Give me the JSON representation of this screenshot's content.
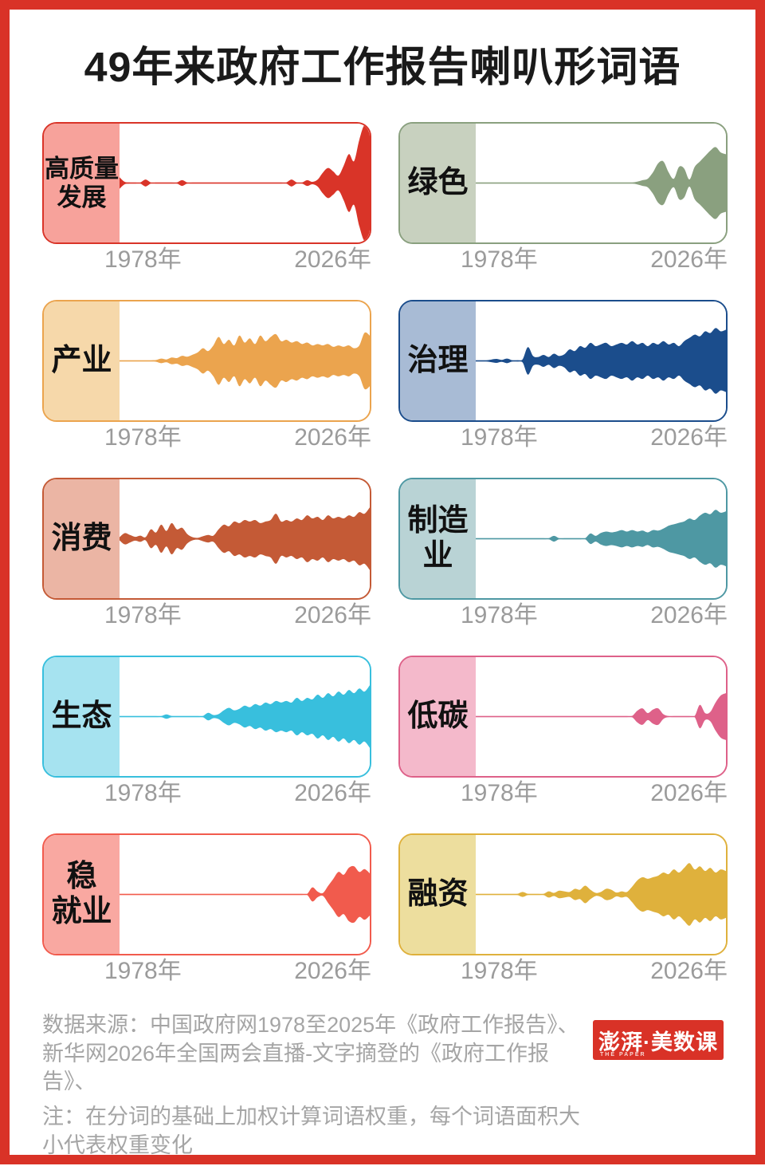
{
  "title": "49年来政府工作报告喇叭形词语",
  "frame_color": "#D93227",
  "text_colors": {
    "title": "#1a1a1a",
    "axis_label": "#9B9B9B",
    "footer": "#A5A5A5"
  },
  "axis": {
    "start": "1978年",
    "end": "2026年"
  },
  "footer": {
    "source_line": "数据来源：中国政府网1978至2025年《政府工作报告》、 新华网2026年全国两会直播-文字摘登的《政府工作报告》、",
    "note_line": "注：在分词的基础上加权计算词语权重，每个词语面积大小代表权重变化"
  },
  "logo": {
    "brand": "澎湃·美数课",
    "sub": "THE PAPER",
    "bg": "#D93227"
  },
  "chart_data": {
    "type": "area",
    "subtype": "horn-stream-small-multiples",
    "x_start": 1978,
    "x_end": 2026,
    "x_axis_labels": [
      "1978年",
      "2026年"
    ],
    "note": "values are relative word weights per year (0-1 of each series max); area is symmetric around midline",
    "series": [
      {
        "word": "高质量\n发展",
        "color": "#D93428",
        "sidebar_color": "#F7A29B",
        "max_half": 74,
        "values": [
          0.1,
          0.02,
          0.01,
          0.01,
          0.01,
          0.06,
          0.01,
          0.01,
          0.01,
          0.01,
          0.01,
          0.01,
          0.05,
          0.01,
          0.01,
          0.01,
          0.01,
          0.01,
          0.01,
          0.01,
          0.01,
          0.01,
          0.01,
          0.01,
          0.01,
          0.01,
          0.01,
          0.01,
          0.01,
          0.01,
          0.01,
          0.01,
          0.01,
          0.06,
          0.01,
          0.01,
          0.05,
          0.02,
          0.06,
          0.18,
          0.26,
          0.2,
          0.13,
          0.3,
          0.5,
          0.38,
          0.75,
          1.0,
          0.85
        ]
      },
      {
        "word": "绿色",
        "color": "#8AA07F",
        "sidebar_color": "#C8D1BF",
        "max_half": 46,
        "values": [
          0.01,
          0.01,
          0.01,
          0.01,
          0.01,
          0.01,
          0.01,
          0.01,
          0.01,
          0.01,
          0.01,
          0.01,
          0.01,
          0.01,
          0.01,
          0.01,
          0.01,
          0.01,
          0.01,
          0.01,
          0.01,
          0.01,
          0.01,
          0.01,
          0.01,
          0.01,
          0.01,
          0.01,
          0.01,
          0.01,
          0.01,
          0.04,
          0.08,
          0.12,
          0.3,
          0.55,
          0.6,
          0.3,
          0.12,
          0.45,
          0.4,
          0.1,
          0.45,
          0.6,
          0.75,
          0.9,
          1.0,
          0.85,
          0.8
        ]
      },
      {
        "word": "产业",
        "color": "#EBA44E",
        "sidebar_color": "#F6D8AA",
        "max_half": 36,
        "values": [
          0.01,
          0.01,
          0.01,
          0.01,
          0.01,
          0.01,
          0.01,
          0.03,
          0.08,
          0.05,
          0.12,
          0.1,
          0.18,
          0.15,
          0.22,
          0.3,
          0.45,
          0.35,
          0.55,
          0.85,
          0.6,
          0.75,
          0.55,
          0.9,
          0.65,
          0.8,
          0.6,
          0.9,
          0.7,
          0.85,
          0.95,
          0.7,
          0.75,
          0.65,
          0.7,
          0.6,
          0.65,
          0.55,
          0.6,
          0.55,
          0.6,
          0.5,
          0.55,
          0.5,
          0.55,
          0.45,
          0.55,
          1.0,
          0.9
        ]
      },
      {
        "word": "治理",
        "color": "#1B4D8C",
        "sidebar_color": "#A8BBD5",
        "max_half": 42,
        "values": [
          0.01,
          0.01,
          0.01,
          0.04,
          0.06,
          0.03,
          0.07,
          0.02,
          0.02,
          0.05,
          0.42,
          0.15,
          0.12,
          0.18,
          0.12,
          0.22,
          0.15,
          0.2,
          0.35,
          0.3,
          0.45,
          0.4,
          0.55,
          0.45,
          0.5,
          0.55,
          0.45,
          0.5,
          0.55,
          0.5,
          0.6,
          0.5,
          0.55,
          0.45,
          0.55,
          0.5,
          0.6,
          0.5,
          0.55,
          0.45,
          0.6,
          0.7,
          0.8,
          0.75,
          0.9,
          0.85,
          1.0,
          0.9,
          0.95
        ]
      },
      {
        "word": "消费",
        "color": "#C45A36",
        "sidebar_color": "#EBB5A4",
        "max_half": 40,
        "values": [
          0.05,
          0.18,
          0.12,
          0.06,
          0.1,
          0.05,
          0.3,
          0.2,
          0.45,
          0.25,
          0.5,
          0.3,
          0.35,
          0.15,
          0.05,
          0.03,
          0.08,
          0.12,
          0.1,
          0.3,
          0.45,
          0.4,
          0.55,
          0.5,
          0.6,
          0.55,
          0.6,
          0.5,
          0.55,
          0.6,
          0.8,
          0.55,
          0.6,
          0.55,
          0.65,
          0.6,
          0.75,
          0.65,
          0.7,
          0.6,
          0.75,
          0.65,
          0.7,
          0.65,
          0.75,
          0.7,
          0.85,
          0.8,
          1.0
        ]
      },
      {
        "word": "制造\n业",
        "color": "#4E98A3",
        "sidebar_color": "#B9D3D5",
        "max_half": 37,
        "values": [
          0.01,
          0.01,
          0.01,
          0.01,
          0.01,
          0.01,
          0.01,
          0.01,
          0.01,
          0.01,
          0.01,
          0.01,
          0.01,
          0.01,
          0.02,
          0.1,
          0.02,
          0.01,
          0.01,
          0.01,
          0.01,
          0.02,
          0.18,
          0.1,
          0.2,
          0.25,
          0.22,
          0.25,
          0.3,
          0.25,
          0.3,
          0.25,
          0.28,
          0.22,
          0.3,
          0.28,
          0.35,
          0.45,
          0.5,
          0.55,
          0.6,
          0.7,
          0.65,
          0.8,
          0.9,
          0.85,
          1.0,
          0.9,
          0.95
        ]
      },
      {
        "word": "生态",
        "color": "#38BFDD",
        "sidebar_color": "#A6E3F0",
        "max_half": 40,
        "values": [
          0.01,
          0.01,
          0.01,
          0.01,
          0.01,
          0.01,
          0.01,
          0.01,
          0.01,
          0.07,
          0.02,
          0.01,
          0.01,
          0.01,
          0.01,
          0.01,
          0.02,
          0.12,
          0.05,
          0.08,
          0.2,
          0.28,
          0.2,
          0.25,
          0.35,
          0.3,
          0.4,
          0.35,
          0.45,
          0.4,
          0.5,
          0.45,
          0.5,
          0.45,
          0.6,
          0.5,
          0.6,
          0.55,
          0.7,
          0.6,
          0.75,
          0.65,
          0.8,
          0.7,
          0.85,
          0.75,
          0.9,
          0.8,
          1.0
        ]
      },
      {
        "word": "低碳",
        "color": "#DE6189",
        "sidebar_color": "#F4B9CB",
        "max_half": 30,
        "values": [
          0.01,
          0.01,
          0.01,
          0.01,
          0.01,
          0.01,
          0.01,
          0.01,
          0.01,
          0.01,
          0.01,
          0.01,
          0.01,
          0.01,
          0.01,
          0.01,
          0.01,
          0.01,
          0.01,
          0.01,
          0.01,
          0.01,
          0.01,
          0.01,
          0.01,
          0.01,
          0.01,
          0.01,
          0.01,
          0.01,
          0.03,
          0.25,
          0.35,
          0.15,
          0.3,
          0.35,
          0.1,
          0.02,
          0.02,
          0.02,
          0.02,
          0.02,
          0.03,
          0.5,
          0.15,
          0.2,
          0.6,
          0.9,
          1.0
        ]
      },
      {
        "word": "稳\n就业",
        "color": "#F15B4D",
        "sidebar_color": "#F9A8A1",
        "max_half": 36,
        "values": [
          0.01,
          0.01,
          0.01,
          0.01,
          0.01,
          0.01,
          0.01,
          0.01,
          0.01,
          0.01,
          0.01,
          0.01,
          0.01,
          0.01,
          0.01,
          0.01,
          0.01,
          0.01,
          0.01,
          0.01,
          0.01,
          0.01,
          0.01,
          0.01,
          0.01,
          0.01,
          0.01,
          0.01,
          0.01,
          0.01,
          0.01,
          0.01,
          0.01,
          0.01,
          0.01,
          0.01,
          0.02,
          0.25,
          0.1,
          0.05,
          0.3,
          0.55,
          0.8,
          0.7,
          0.95,
          1.0,
          0.8,
          0.9,
          0.75
        ]
      },
      {
        "word": "融资",
        "color": "#DFB13C",
        "sidebar_color": "#EDDE9E",
        "max_half": 40,
        "values": [
          0.01,
          0.01,
          0.01,
          0.01,
          0.01,
          0.01,
          0.01,
          0.01,
          0.02,
          0.08,
          0.02,
          0.01,
          0.01,
          0.02,
          0.1,
          0.05,
          0.12,
          0.1,
          0.08,
          0.18,
          0.15,
          0.28,
          0.15,
          0.05,
          0.08,
          0.18,
          0.15,
          0.06,
          0.1,
          0.08,
          0.25,
          0.45,
          0.55,
          0.5,
          0.55,
          0.6,
          0.7,
          0.65,
          0.8,
          0.7,
          0.85,
          1.0,
          0.8,
          0.9,
          0.75,
          0.85,
          0.7,
          0.8,
          0.75
        ]
      }
    ]
  }
}
